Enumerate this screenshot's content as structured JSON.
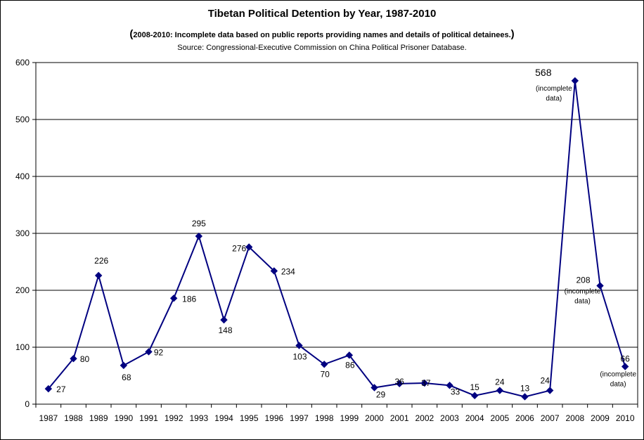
{
  "chart_data": {
    "type": "line",
    "title": "Tibetan Political Detention by Year, 1987-2010",
    "subtitle": "2008-2010: Incomplete data based on public reports providing names and details of political detainees.",
    "source": "Source: Congressional-Executive Commission on China Political Prisoner Database.",
    "x": [
      "1987",
      "1988",
      "1989",
      "1990",
      "1991",
      "1992",
      "1993",
      "1994",
      "1995",
      "1996",
      "1997",
      "1998",
      "1999",
      "2000",
      "2001",
      "2002",
      "2003",
      "2004",
      "2005",
      "2006",
      "2007",
      "2008",
      "2009",
      "2010"
    ],
    "series": [
      {
        "values": [
          27,
          80,
          226,
          68,
          92,
          186,
          295,
          148,
          276,
          234,
          103,
          70,
          86,
          29,
          36,
          37,
          33,
          15,
          24,
          13,
          24,
          568,
          208,
          66
        ]
      }
    ],
    "ylim": [
      0,
      600
    ],
    "yticks": [
      "0",
      "100",
      "200",
      "300",
      "400",
      "500",
      "600"
    ],
    "grid": true,
    "annotations": [
      {
        "year": "2008",
        "text": "(incomplete data)"
      },
      {
        "year": "2009",
        "text": "(incomplete data)"
      },
      {
        "year": "2010",
        "text": "(incomplete data)"
      }
    ],
    "line_color": "#000080"
  }
}
